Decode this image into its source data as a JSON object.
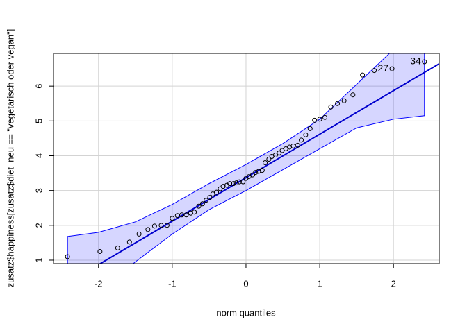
{
  "chart_data": {
    "type": "scatter",
    "x_label": "norm quantiles",
    "y_label": "zusatz$happiness[zusatz$diet_neu == \"vegetarisch oder vegan\"]",
    "xlim": [
      -2.61,
      2.62
    ],
    "ylim": [
      0.9,
      6.94
    ],
    "xticks": [
      -2,
      -1,
      0,
      1,
      2
    ],
    "yticks": [
      1,
      2,
      3,
      4,
      5,
      6
    ],
    "grid": true,
    "x": [
      -2.42,
      -1.98,
      -1.74,
      -1.58,
      -1.45,
      -1.33,
      -1.24,
      -1.15,
      -1.07,
      -1.0,
      -0.93,
      -0.87,
      -0.81,
      -0.75,
      -0.7,
      -0.64,
      -0.59,
      -0.54,
      -0.49,
      -0.45,
      -0.4,
      -0.35,
      -0.31,
      -0.26,
      -0.22,
      -0.17,
      -0.13,
      -0.09,
      -0.04,
      0,
      0.04,
      0.09,
      0.13,
      0.17,
      0.22,
      0.26,
      0.31,
      0.35,
      0.4,
      0.45,
      0.49,
      0.54,
      0.59,
      0.64,
      0.7,
      0.75,
      0.81,
      0.87,
      0.93,
      1.0,
      1.07,
      1.15,
      1.24,
      1.33,
      1.45,
      1.58,
      1.74,
      1.98,
      2.42
    ],
    "values": [
      1.1,
      1.25,
      1.35,
      1.52,
      1.75,
      1.88,
      1.98,
      2.0,
      2.0,
      2.2,
      2.28,
      2.3,
      2.3,
      2.35,
      2.38,
      2.55,
      2.62,
      2.72,
      2.8,
      2.9,
      2.95,
      3.05,
      3.12,
      3.15,
      3.2,
      3.2,
      3.22,
      3.25,
      3.25,
      3.35,
      3.4,
      3.45,
      3.52,
      3.55,
      3.58,
      3.8,
      3.9,
      3.98,
      4.02,
      4.08,
      4.15,
      4.2,
      4.25,
      4.28,
      4.3,
      4.45,
      4.6,
      4.78,
      5.02,
      5.05,
      5.1,
      5.4,
      5.5,
      5.58,
      5.75,
      6.32,
      6.45,
      6.5,
      6.7
    ],
    "color": "#000000",
    "point_labels": [
      {
        "text": "27",
        "x": 1.98,
        "y": 6.5
      },
      {
        "text": "34",
        "x": 2.42,
        "y": 6.7
      }
    ],
    "reference_line": {
      "intercept": 3.37,
      "slope": 1.25,
      "color": "#0000cd"
    },
    "envelope": {
      "x": [
        -2.42,
        -2,
        -1.5,
        -1,
        -0.5,
        0,
        0.5,
        1,
        1.5,
        2,
        2.42
      ],
      "upper": [
        1.68,
        1.8,
        2.1,
        2.6,
        3.2,
        3.75,
        4.35,
        5.05,
        6.05,
        7.05,
        8.0
      ],
      "lower": [
        -0.5,
        0.1,
        0.95,
        1.75,
        2.45,
        3.0,
        3.6,
        4.2,
        4.8,
        5.05,
        5.15
      ],
      "color": "#0000ff"
    }
  }
}
